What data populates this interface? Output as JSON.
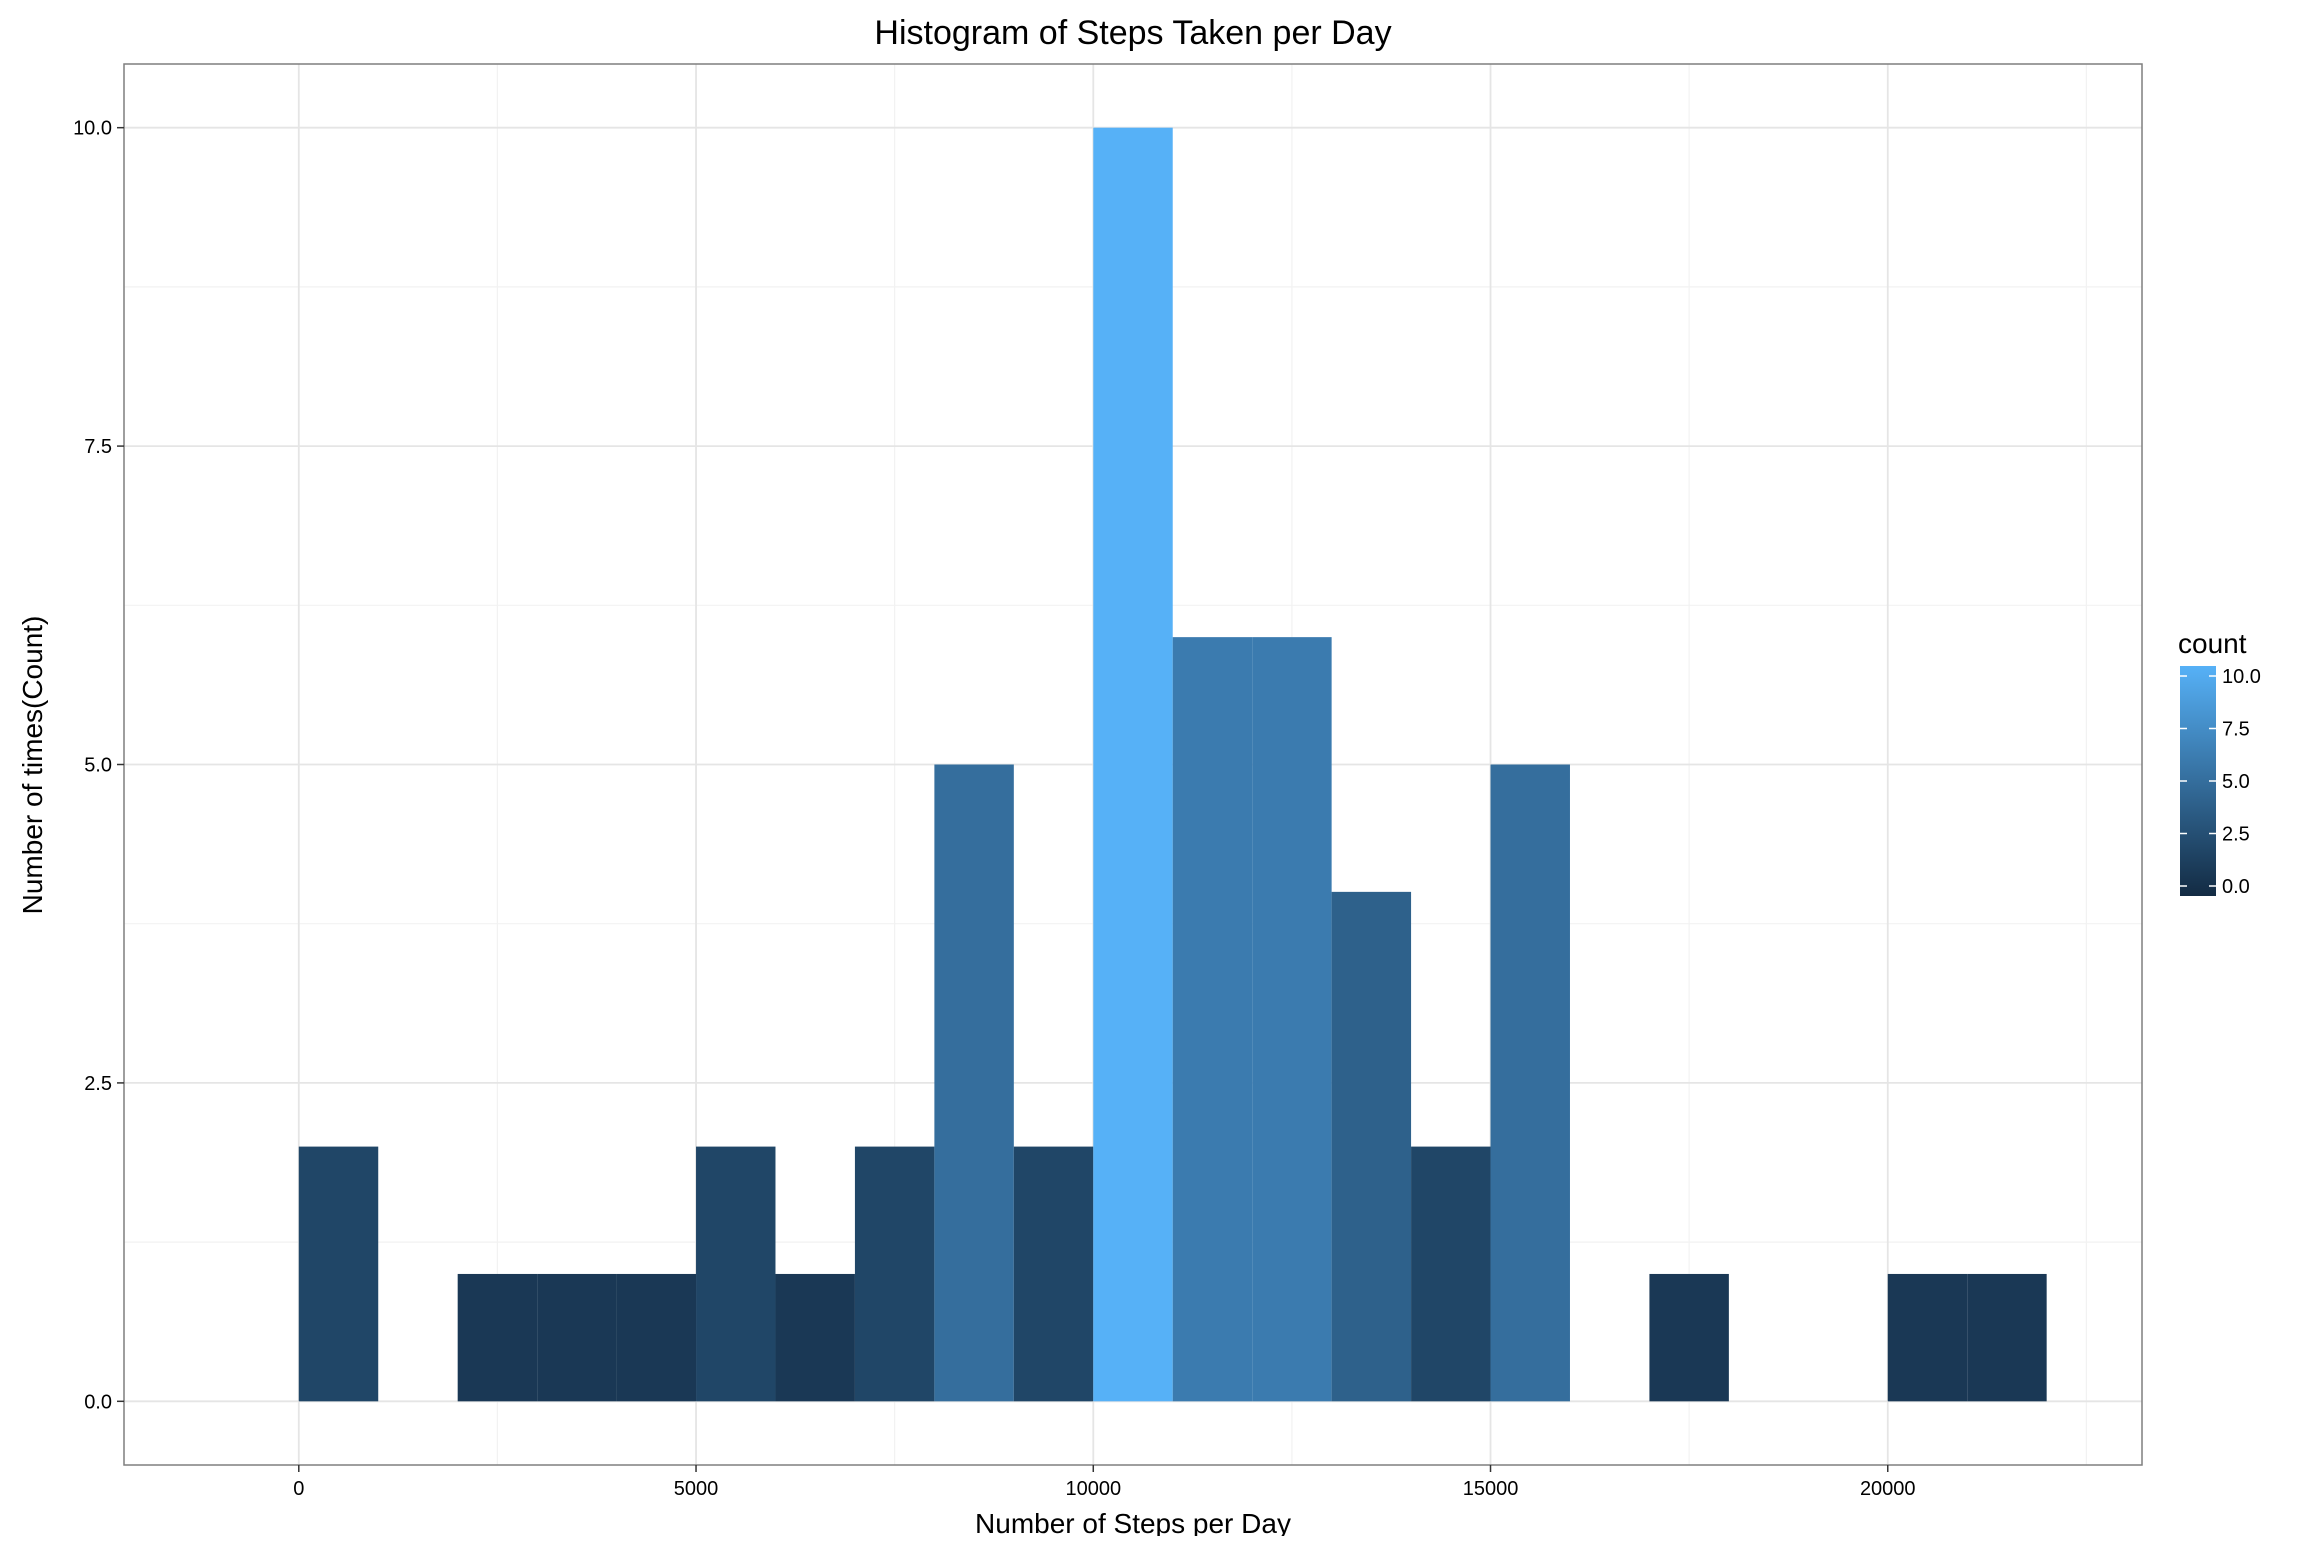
{
  "chart_data": {
    "type": "bar",
    "title": "Histogram of Steps Taken per Day",
    "xlabel": "Number of Steps per Day",
    "ylabel": "Number of times(Count)",
    "xlim": [
      -2200,
      23200
    ],
    "ylim": [
      -0.5,
      10.5
    ],
    "x_ticks": [
      0,
      5000,
      10000,
      15000,
      20000
    ],
    "x_tick_labels": [
      "0",
      "5000",
      "10000",
      "15000",
      "20000"
    ],
    "y_ticks": [
      0,
      2.5,
      5,
      7.5,
      10
    ],
    "y_tick_labels": [
      "0.0",
      "2.5",
      "5.0",
      "7.5",
      "10.0"
    ],
    "grid": true,
    "bin_width": 1000,
    "bins": [
      {
        "x0": 0,
        "x1": 1000,
        "count": 2
      },
      {
        "x0": 1000,
        "x1": 2000,
        "count": 0
      },
      {
        "x0": 2000,
        "x1": 3000,
        "count": 1
      },
      {
        "x0": 3000,
        "x1": 4000,
        "count": 1
      },
      {
        "x0": 4000,
        "x1": 5000,
        "count": 1
      },
      {
        "x0": 5000,
        "x1": 6000,
        "count": 2
      },
      {
        "x0": 6000,
        "x1": 7000,
        "count": 1
      },
      {
        "x0": 7000,
        "x1": 8000,
        "count": 2
      },
      {
        "x0": 8000,
        "x1": 9000,
        "count": 5
      },
      {
        "x0": 9000,
        "x1": 10000,
        "count": 2
      },
      {
        "x0": 10000,
        "x1": 11000,
        "count": 10
      },
      {
        "x0": 11000,
        "x1": 12000,
        "count": 6
      },
      {
        "x0": 12000,
        "x1": 13000,
        "count": 6
      },
      {
        "x0": 13000,
        "x1": 14000,
        "count": 4
      },
      {
        "x0": 14000,
        "x1": 15000,
        "count": 2
      },
      {
        "x0": 15000,
        "x1": 16000,
        "count": 5
      },
      {
        "x0": 16000,
        "x1": 17000,
        "count": 0
      },
      {
        "x0": 17000,
        "x1": 18000,
        "count": 1
      },
      {
        "x0": 18000,
        "x1": 19000,
        "count": 0
      },
      {
        "x0": 19000,
        "x1": 20000,
        "count": 0
      },
      {
        "x0": 20000,
        "x1": 21000,
        "count": 1
      },
      {
        "x0": 21000,
        "x1": 22000,
        "count": 1
      }
    ],
    "fill_scale": {
      "variable": "count",
      "low_color": "#132B43",
      "high_color": "#56B1F7",
      "range": [
        0,
        10
      ]
    },
    "legend": {
      "title": "count",
      "position": "right",
      "breaks": [
        10,
        7.5,
        5,
        2.5,
        0
      ],
      "labels": [
        "10.0",
        "7.5",
        "5.0",
        "2.5",
        "0.0"
      ]
    }
  }
}
